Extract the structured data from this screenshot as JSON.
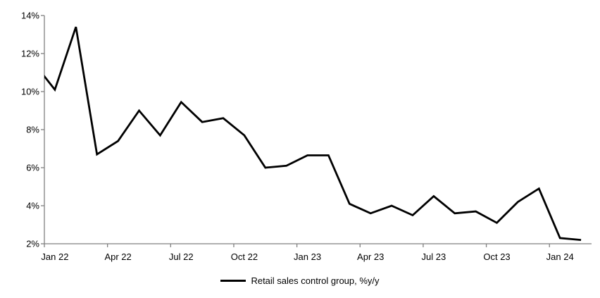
{
  "chart_data": {
    "type": "line",
    "title": "",
    "series_name": "Retail sales control group, %y/y",
    "line_color": "#000000",
    "axis_color": "#808080",
    "text_color": "#000000",
    "grid": false,
    "legend_position": "bottom",
    "ylim": [
      2,
      14
    ],
    "y_ticks": [
      "2%",
      "4%",
      "6%",
      "8%",
      "10%",
      "12%",
      "14%"
    ],
    "y_tick_values": [
      2,
      4,
      6,
      8,
      10,
      12,
      14
    ],
    "x_tick_labels": [
      "Jan 22",
      "Apr 22",
      "Jul 22",
      "Oct 22",
      "Jan 23",
      "Apr 23",
      "Jul 23",
      "Oct 23",
      "Jan 24"
    ],
    "x": [
      "Dec 21",
      "Jan 22",
      "Feb 22",
      "Mar 22",
      "Apr 22",
      "May 22",
      "Jun 22",
      "Jul 22",
      "Aug 22",
      "Sep 22",
      "Oct 22",
      "Nov 22",
      "Dec 22",
      "Jan 23",
      "Feb 23",
      "Mar 23",
      "Apr 23",
      "May 23",
      "Jun 23",
      "Jul 23",
      "Aug 23",
      "Sep 23",
      "Oct 23",
      "Nov 23",
      "Dec 23",
      "Jan 24",
      "Feb 24"
    ],
    "values": [
      11.5,
      10.1,
      13.4,
      6.7,
      7.4,
      9.0,
      7.7,
      9.45,
      8.4,
      8.6,
      7.7,
      6.0,
      6.1,
      6.65,
      6.65,
      4.1,
      3.6,
      4.0,
      3.5,
      4.5,
      3.6,
      3.7,
      3.1,
      4.2,
      4.9,
      2.3,
      2.2
    ],
    "first_point_clipped_by_axis": true
  },
  "legend": {
    "label": "Retail sales control group, %y/y"
  }
}
